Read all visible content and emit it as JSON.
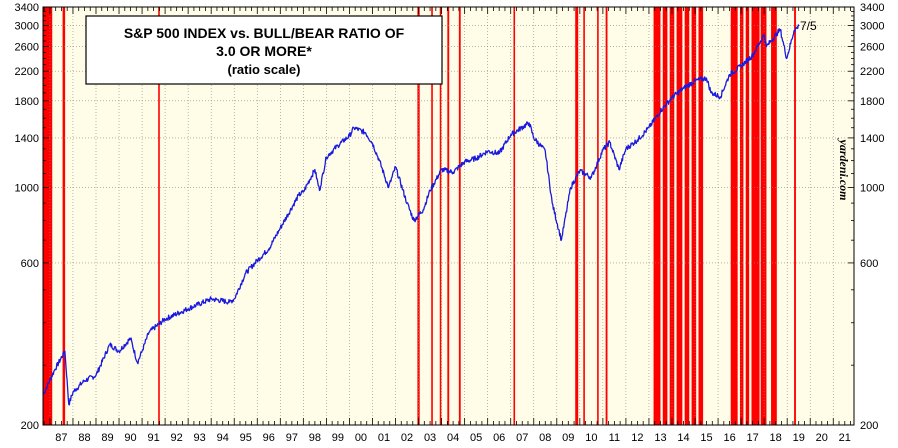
{
  "chart_data": {
    "type": "line",
    "title": "S&P 500 INDEX vs. BULL/BEAR RATIO OF",
    "title_line2": "3.0 OR MORE*",
    "subtitle": "(ratio scale)",
    "watermark": "yardeni.com",
    "last_label": "7/5",
    "y_scale": "log",
    "ylim": [
      200,
      3400
    ],
    "xlim": [
      1986.7,
      2021.9
    ],
    "y_ticks": [
      200,
      600,
      1000,
      1400,
      1800,
      2200,
      2600,
      3000,
      3400
    ],
    "x_tick_labels": [
      "87",
      "88",
      "89",
      "90",
      "91",
      "92",
      "93",
      "94",
      "95",
      "96",
      "97",
      "98",
      "99",
      "00",
      "01",
      "02",
      "03",
      "04",
      "05",
      "06",
      "07",
      "08",
      "09",
      "10",
      "11",
      "12",
      "13",
      "14",
      "15",
      "16",
      "17",
      "18",
      "19",
      "20",
      "21"
    ],
    "x_tick_years": [
      1987,
      1988,
      1989,
      1990,
      1991,
      1992,
      1993,
      1994,
      1995,
      1996,
      1997,
      1998,
      1999,
      2000,
      2001,
      2002,
      2003,
      2004,
      2005,
      2006,
      2007,
      2008,
      2009,
      2010,
      2011,
      2012,
      2013,
      2014,
      2015,
      2016,
      2017,
      2018,
      2019,
      2020,
      2021
    ],
    "grid": "dotted horizontal and vertical",
    "plot_background": "#fffde8",
    "colors": {
      "line": "#1a1adf",
      "bars": "#ff0000",
      "frame": "#000000"
    },
    "series": [
      {
        "name": "S&P 500 Index",
        "points": [
          [
            1986.7,
            245
          ],
          [
            1987.2,
            290
          ],
          [
            1987.65,
            330
          ],
          [
            1987.82,
            230
          ],
          [
            1988.0,
            250
          ],
          [
            1988.5,
            270
          ],
          [
            1989.0,
            280
          ],
          [
            1989.6,
            345
          ],
          [
            1990.0,
            330
          ],
          [
            1990.5,
            360
          ],
          [
            1990.8,
            305
          ],
          [
            1991.0,
            330
          ],
          [
            1991.3,
            375
          ],
          [
            1992.0,
            410
          ],
          [
            1993.0,
            440
          ],
          [
            1994.0,
            470
          ],
          [
            1994.8,
            460
          ],
          [
            1995.0,
            470
          ],
          [
            1995.5,
            560
          ],
          [
            1996.0,
            610
          ],
          [
            1996.5,
            660
          ],
          [
            1997.0,
            760
          ],
          [
            1997.8,
            950
          ],
          [
            1998.0,
            970
          ],
          [
            1998.5,
            1130
          ],
          [
            1998.7,
            980
          ],
          [
            1999.0,
            1230
          ],
          [
            1999.5,
            1330
          ],
          [
            2000.0,
            1420
          ],
          [
            2000.2,
            1500
          ],
          [
            2000.7,
            1450
          ],
          [
            2001.0,
            1350
          ],
          [
            2001.3,
            1200
          ],
          [
            2001.7,
            1000
          ],
          [
            2002.0,
            1150
          ],
          [
            2002.5,
            900
          ],
          [
            2002.8,
            800
          ],
          [
            2003.2,
            860
          ],
          [
            2003.5,
            980
          ],
          [
            2004.0,
            1130
          ],
          [
            2004.5,
            1110
          ],
          [
            2005.0,
            1190
          ],
          [
            2005.5,
            1220
          ],
          [
            2006.0,
            1280
          ],
          [
            2006.5,
            1260
          ],
          [
            2007.0,
            1430
          ],
          [
            2007.8,
            1550
          ],
          [
            2008.0,
            1400
          ],
          [
            2008.5,
            1280
          ],
          [
            2008.8,
            900
          ],
          [
            2009.2,
            700
          ],
          [
            2009.6,
            1000
          ],
          [
            2010.0,
            1120
          ],
          [
            2010.5,
            1070
          ],
          [
            2011.0,
            1290
          ],
          [
            2011.3,
            1360
          ],
          [
            2011.7,
            1130
          ],
          [
            2012.0,
            1300
          ],
          [
            2012.5,
            1380
          ],
          [
            2013.0,
            1500
          ],
          [
            2013.5,
            1680
          ],
          [
            2014.0,
            1840
          ],
          [
            2014.5,
            1960
          ],
          [
            2015.0,
            2060
          ],
          [
            2015.5,
            2100
          ],
          [
            2015.7,
            1900
          ],
          [
            2016.1,
            1850
          ],
          [
            2016.5,
            2150
          ],
          [
            2017.0,
            2280
          ],
          [
            2017.5,
            2450
          ],
          [
            2018.0,
            2820
          ],
          [
            2018.1,
            2600
          ],
          [
            2018.7,
            2920
          ],
          [
            2018.98,
            2400
          ],
          [
            2019.3,
            2900
          ],
          [
            2019.51,
            2990
          ]
        ]
      }
    ],
    "bull_bear_periods": [
      [
        1986.72,
        1987.1
      ],
      [
        1987.55,
        1987.66
      ],
      [
        1991.7,
        1991.75
      ],
      [
        2002.95,
        2003.05
      ],
      [
        2003.55,
        2003.62
      ],
      [
        2003.92,
        2003.98
      ],
      [
        2004.25,
        2004.33
      ],
      [
        2004.75,
        2004.83
      ],
      [
        2007.12,
        2007.18
      ],
      [
        2009.8,
        2009.93
      ],
      [
        2010.15,
        2010.22
      ],
      [
        2010.75,
        2010.82
      ],
      [
        2011.12,
        2011.2
      ],
      [
        2013.2,
        2013.5
      ],
      [
        2013.6,
        2013.8
      ],
      [
        2013.9,
        2014.1
      ],
      [
        2014.2,
        2014.45
      ],
      [
        2014.55,
        2014.75
      ],
      [
        2014.85,
        2015.05
      ],
      [
        2015.15,
        2015.35
      ],
      [
        2016.55,
        2016.85
      ],
      [
        2016.95,
        2017.1
      ],
      [
        2017.2,
        2017.35
      ],
      [
        2017.45,
        2017.8
      ],
      [
        2017.85,
        2018.1
      ],
      [
        2018.3,
        2018.55
      ],
      [
        2019.3,
        2019.38
      ]
    ]
  }
}
